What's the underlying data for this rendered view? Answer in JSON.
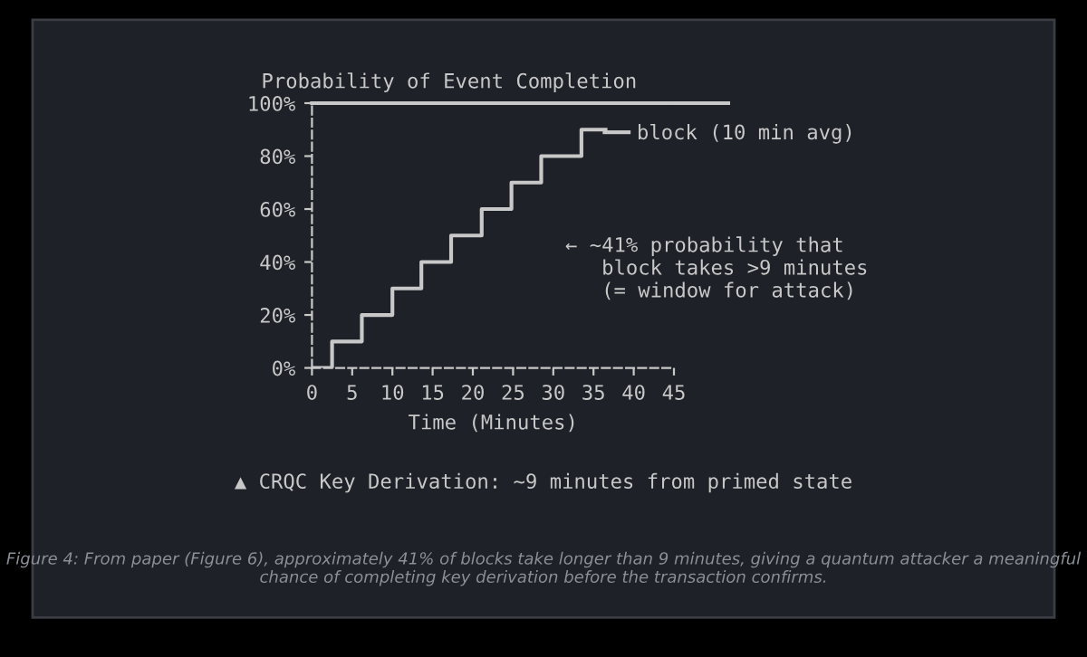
{
  "chart_data": {
    "type": "step",
    "title": "Probability of Event Completion",
    "xlabel": "Time (Minutes)",
    "x": [
      0,
      2.5,
      6.2,
      10,
      13.6,
      17.3,
      21.1,
      24.8,
      28.5,
      33.5,
      36.5
    ],
    "series": [
      {
        "name": "block (10 min avg)",
        "color": "#c8c8c8",
        "values": [
          0,
          10,
          20,
          30,
          40,
          50,
          60,
          70,
          80,
          90,
          90
        ]
      }
    ],
    "xlim": [
      0,
      45
    ],
    "xticks": [
      0,
      5,
      10,
      15,
      20,
      25,
      30,
      35,
      40,
      45
    ],
    "ylim": [
      0,
      100
    ],
    "yticks": [
      {
        "value": 0,
        "label": "0%"
      },
      {
        "value": 20,
        "label": "20%"
      },
      {
        "value": 40,
        "label": "40%"
      },
      {
        "value": 60,
        "label": "60%"
      },
      {
        "value": 80,
        "label": "80%"
      },
      {
        "value": 100,
        "label": "100%"
      }
    ],
    "ref_lines": [
      {
        "axis": "y",
        "value": 100,
        "label": null,
        "color": "#c8c8c8"
      }
    ],
    "grid": false,
    "legend": "top right",
    "marker": "none",
    "line_style": "solid",
    "annotations": [
      "← ~41% probability that\n   block takes >9 minutes\n   (= window for attack)",
      "▲ CRQC Key Derivation: ~9 minutes from primed state",
      "Figure 4: From paper (Figure 6), approximately 41% of blocks take longer than 9 minutes, giving a quantum attacker a meaningful chance of completing key derivation before the transaction confirms."
    ]
  }
}
